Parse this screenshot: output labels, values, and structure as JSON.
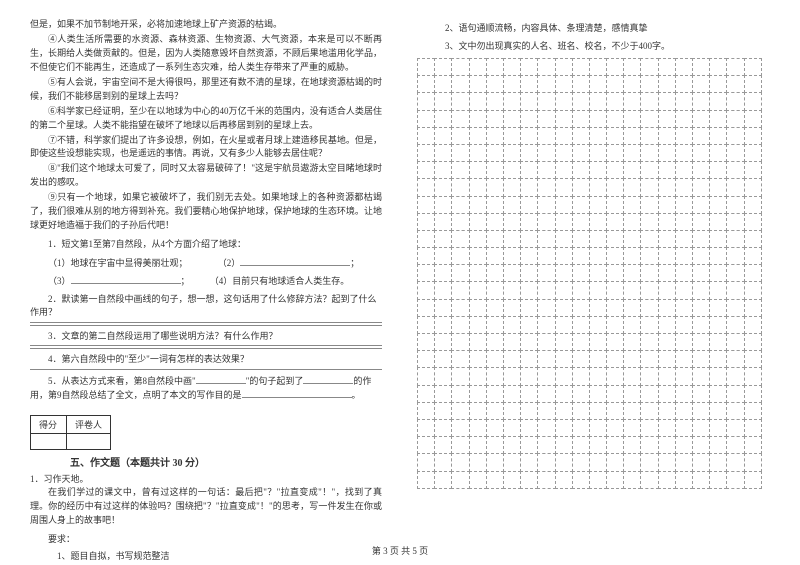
{
  "left": {
    "p1": "但是，如果不加节制地开采，必将加速地球上矿产资源的枯竭。",
    "p2": "④人类生活所需要的水资源、森林资源、生物资源、大气资源，本来是可以不断再生，长期给人类做贡献的。但是，因为人类随意毁坏自然资源，不顾后果地滥用化学品，不但使它们不能再生，还造成了一系列生态灾难，给人类生存带来了严重的威胁。",
    "p3": "⑤有人会说，宇宙空间不是大得很吗，那里还有数不清的星球，在地球资源枯竭的时候，我们不能移居到别的星球上去吗？",
    "p4": "⑥科学家已经证明，至少在以地球为中心的40万亿千米的范围内，没有适合人类居住的第二个星球。人类不能指望在破坏了地球以后再移居到别的星球上去。",
    "p5": "⑦不错，科学家们提出了许多设想，例如，在火星或者月球上建造移民基地。但是，即使这些设想能实现，也是遥远的事情。再说，又有多少人能够去居住呢？",
    "p6": "⑧\"我们这个地球太可爱了，同时又太容易破碎了！\"这是宇航员遨游太空目睹地球时发出的感叹。",
    "p7": "⑨只有一个地球，如果它被破坏了，我们别无去处。如果地球上的各种资源都枯竭了，我们很难从别的地方得到补充。我们要精心地保护地球，保护地球的生态环境。让地球更好地造福于我们的子孙后代吧！",
    "q1": "1．短文第1至第7自然段，从4个方面介绍了地球：",
    "q1a": "（1）地球在宇宙中显得美丽壮观；",
    "q1a2": "（2）",
    "q1b": "（3）",
    "q1b2": "（4）目前只有地球适合人类生存。",
    "q2": "2．默读第一自然段中画线的句子，想一想，这句话用了什么修辞方法？起到了什么作用？",
    "q3": "3．文章的第二自然段运用了哪些说明方法？有什么作用？",
    "q4": "4．第六自然段中的\"至少\"一词有怎样的表达效果？",
    "q5a": "5．从表达方式来看，第8自然段中画\"",
    "q5b": "\"的句子起到了",
    "q5c": "的作用，第9自然段总结了全文，点明了本文的写作目的是",
    "score_a": "得分",
    "score_b": "评卷人",
    "section": "五、作文题（本题共计 30 分）",
    "w1": "1．习作天地。",
    "w2": "在我们学过的课文中，曾有过这样的一句话：最后把\"？\"拉直变成\"！\"，找到了真理。你的经历中有过这样的体验吗？围绕把\"？\"拉直变成\"！\"的思考，写一件发生在你或周围人身上的故事吧！",
    "w3": "要求：",
    "w4": "1、题目自拟，书写规范整洁"
  },
  "right": {
    "r1": "2、语句通顺流畅，内容具体、条理清楚，感情真挚",
    "r2": "3、文中勿出现真实的人名、班名、校名，不少于400字。"
  },
  "grid": {
    "rows": 25,
    "cols": 20
  },
  "footer": "第 3 页 共 5 页"
}
